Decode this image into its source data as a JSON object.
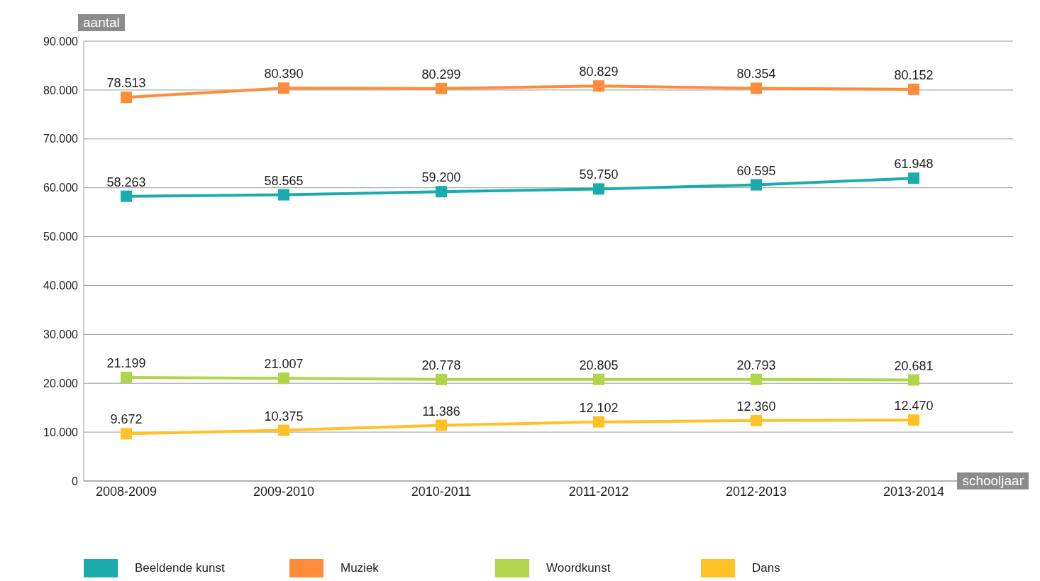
{
  "chart_data": {
    "type": "line",
    "xlabel": "schooljaar",
    "ylabel": "aantal",
    "categories": [
      "2008-2009",
      "2009-2010",
      "2010-2011",
      "2011-2012",
      "2012-2013",
      "2013-2014"
    ],
    "series": [
      {
        "name": "Beeldende kunst",
        "color": "#1aacac",
        "values": [
          58263,
          58565,
          59200,
          59750,
          60595,
          61948
        ],
        "value_labels": [
          "58.263",
          "58.565",
          "59.200",
          "59.750",
          "60.595",
          "61.948"
        ]
      },
      {
        "name": "Muziek",
        "color": "#ff8c3a",
        "values": [
          78513,
          80390,
          80299,
          80829,
          80354,
          80152
        ],
        "value_labels": [
          "78.513",
          "80.390",
          "80.299",
          "80.829",
          "80.354",
          "80.152"
        ]
      },
      {
        "name": "Woordkunst",
        "color": "#b0d44a",
        "values": [
          21199,
          21007,
          20778,
          20805,
          20793,
          20681
        ],
        "value_labels": [
          "21.199",
          "21.007",
          "20.778",
          "20.805",
          "20.793",
          "20.681"
        ]
      },
      {
        "name": "Dans",
        "color": "#ffc125",
        "values": [
          9672,
          10375,
          11386,
          12102,
          12360,
          12470
        ],
        "value_labels": [
          "9.672",
          "10.375",
          "11.386",
          "12.102",
          "12.360",
          "12.470"
        ]
      }
    ],
    "ylim": [
      0,
      90000
    ],
    "yticks": [
      {
        "value": 0,
        "label": "0"
      },
      {
        "value": 10000,
        "label": "10.000"
      },
      {
        "value": 20000,
        "label": "20.000"
      },
      {
        "value": 30000,
        "label": "30.000"
      },
      {
        "value": 40000,
        "label": "40.000"
      },
      {
        "value": 50000,
        "label": "50.000"
      },
      {
        "value": 60000,
        "label": "60.000"
      },
      {
        "value": 70000,
        "label": "70.000"
      },
      {
        "value": 80000,
        "label": "80.000"
      },
      {
        "value": 90000,
        "label": "90.000"
      }
    ],
    "grid": "y",
    "legend": "bottom",
    "marker": "square",
    "line_style": "solid"
  }
}
